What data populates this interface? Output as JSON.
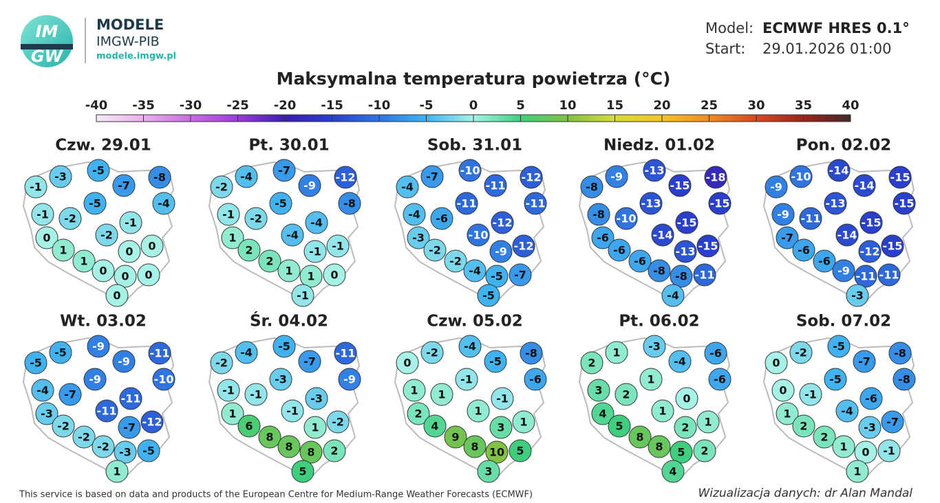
{
  "header": {
    "logo": [
      "IM",
      "GW"
    ],
    "brand": "MODELE",
    "org": "IMGW-PIB",
    "url": "modele.imgw.pl",
    "model_label": "Model:",
    "model": "ECMWF HRES 0.1°",
    "start_label": "Start:",
    "start": "29.01.2026 01:00"
  },
  "title": "Maksymalna temperatura powietrza (°C)",
  "colorbar": {
    "ticks": [
      -40,
      -35,
      -30,
      -25,
      -20,
      -15,
      -10,
      -5,
      0,
      5,
      10,
      15,
      20,
      25,
      30,
      35,
      40
    ],
    "colors": [
      "#f7eaf7",
      "#e8b0ec",
      "#c86ee0",
      "#9a3cd8",
      "#3a1eb0",
      "#2a3fcc",
      "#2f74e0",
      "#40b2f0",
      "#a6f2e6",
      "#3ecf7e",
      "#82c046",
      "#d6dc3c",
      "#f2c42a",
      "#ee8a24",
      "#d24a22",
      "#9c241c",
      "#3e2a2a"
    ]
  },
  "days": [
    {
      "label": "Czw. 29.01",
      "values": [
        -3,
        -5,
        -8,
        -1,
        -7,
        -4,
        -5,
        -1,
        -2,
        -1,
        0,
        -2,
        1,
        0,
        0,
        1,
        0,
        0,
        0,
        0
      ]
    },
    {
      "label": "Pt. 30.01",
      "values": [
        -4,
        -7,
        -12,
        -2,
        -9,
        -8,
        -5,
        -1,
        -2,
        -4,
        1,
        -4,
        2,
        -1,
        -1,
        2,
        1,
        1,
        0,
        -1
      ]
    },
    {
      "label": "Sob. 31.01",
      "values": [
        -7,
        -10,
        -12,
        -4,
        -11,
        -11,
        -11,
        -4,
        -6,
        -12,
        -3,
        -10,
        -2,
        -9,
        -12,
        -2,
        -4,
        -5,
        -7,
        -5
      ]
    },
    {
      "label": "Niedz. 01.02",
      "values": [
        -9,
        -13,
        -18,
        -8,
        -15,
        -15,
        -13,
        -8,
        -10,
        -15,
        -6,
        -14,
        -6,
        -13,
        -15,
        -6,
        -8,
        -8,
        -11,
        -4
      ]
    },
    {
      "label": "Pon. 02.02",
      "values": [
        -10,
        -14,
        -15,
        -9,
        -14,
        -15,
        -13,
        -9,
        -11,
        -15,
        -7,
        -14,
        -6,
        -12,
        -15,
        -6,
        -9,
        -11,
        -11,
        -3
      ]
    },
    {
      "label": "Wt. 03.02",
      "values": [
        -5,
        -9,
        -11,
        -5,
        -9,
        -10,
        -9,
        -4,
        -7,
        -11,
        -3,
        -11,
        -2,
        -7,
        -12,
        -2,
        -2,
        -3,
        -5,
        1
      ]
    },
    {
      "label": "Śr. 04.02",
      "values": [
        -4,
        -5,
        -11,
        -2,
        -7,
        -9,
        -3,
        -1,
        -1,
        -3,
        1,
        -1,
        6,
        1,
        -2,
        8,
        8,
        8,
        2,
        5
      ]
    },
    {
      "label": "Czw. 05.02",
      "values": [
        -2,
        -4,
        -8,
        0,
        -5,
        -6,
        -1,
        1,
        1,
        -1,
        2,
        1,
        4,
        3,
        1,
        9,
        8,
        10,
        5,
        3
      ]
    },
    {
      "label": "Pt. 06.02",
      "values": [
        1,
        -3,
        -6,
        2,
        -4,
        -6,
        1,
        3,
        2,
        0,
        4,
        1,
        5,
        2,
        1,
        8,
        8,
        5,
        2,
        4
      ]
    },
    {
      "label": "Sob. 07.02",
      "values": [
        -2,
        -5,
        -8,
        0,
        -7,
        -8,
        -5,
        0,
        -1,
        -6,
        1,
        -4,
        2,
        -3,
        -7,
        2,
        1,
        0,
        -1,
        1
      ]
    }
  ],
  "footer": {
    "source": "This service is based on data and products of the European Centre for Medium-Range Weather Forecasts (ECMWF)",
    "credit": "Wizualizacja danych: dr Alan Mandal"
  }
}
